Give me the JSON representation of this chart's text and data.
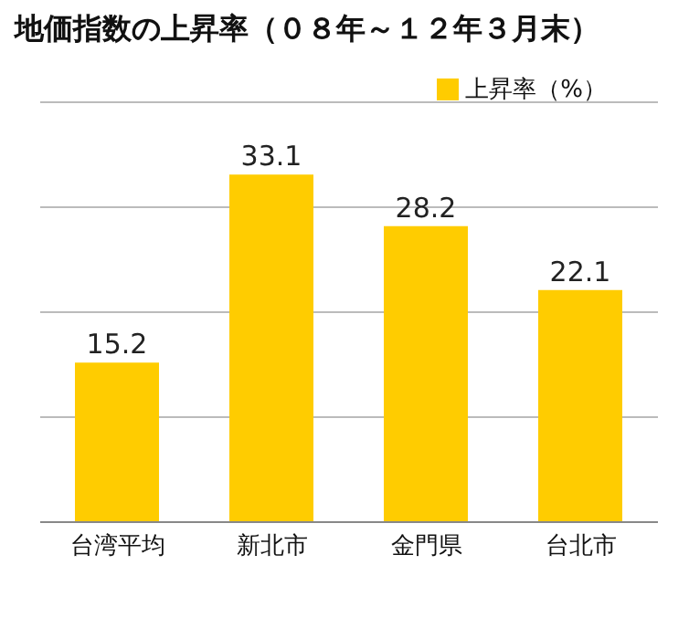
{
  "chart_data": {
    "type": "bar",
    "title": "地価指数の上昇率（０８年～１２年３月末）",
    "categories": [
      "台湾平均",
      "新北市",
      "金門県",
      "台北市"
    ],
    "series": [
      {
        "name": "上昇率（%）",
        "color": "#ffcc00",
        "values": [
          15.2,
          33.1,
          28.2,
          22.1
        ]
      }
    ],
    "ylim": [
      0,
      40
    ],
    "yticks": [
      {
        "value": 0,
        "label": null
      },
      {
        "value": 10,
        "label": null
      },
      {
        "value": 20,
        "label": null
      },
      {
        "value": 30,
        "label": null
      },
      {
        "value": 40,
        "label": null
      }
    ],
    "tick_labels": "x",
    "grid": "y",
    "legend": "top right",
    "data_labels": true
  }
}
